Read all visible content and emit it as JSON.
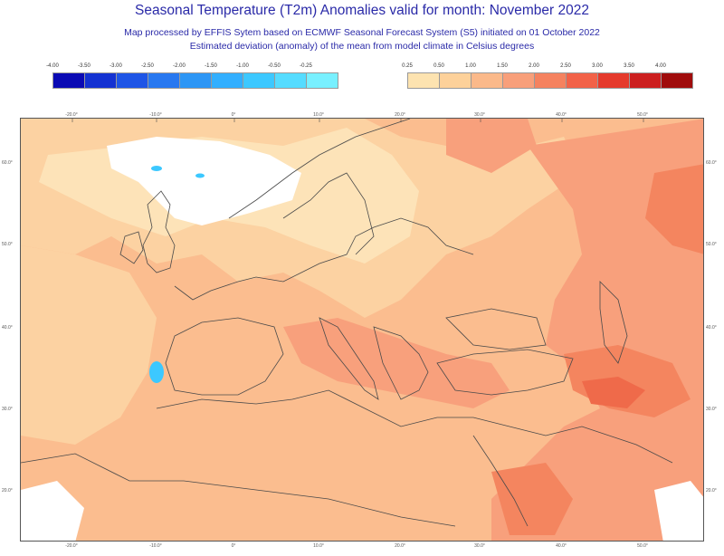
{
  "header": {
    "title": "Seasonal Temperature (T2m) Anomalies valid for month: November 2022",
    "subtitle1": "Map processed by EFFIS Sytem based on ECMWF Seasonal Forecast System (S5) initiated on 01 October 2022",
    "subtitle2": "Estimated deviation (anomaly) of the mean from model climate in Celsius degrees"
  },
  "legend": {
    "cold": {
      "ticks": [
        "-4.00",
        "-3.50",
        "-3.00",
        "-2.50",
        "-2.00",
        "-1.50",
        "-1.00",
        "-0.50",
        "-0.25"
      ],
      "colors": [
        "#0a0ab4",
        "#1432d2",
        "#1e55e6",
        "#2878f0",
        "#2d96f5",
        "#32afff",
        "#3cc8ff",
        "#55dcff",
        "#78f0ff"
      ]
    },
    "warm": {
      "ticks": [
        "0.25",
        "0.50",
        "1.00",
        "1.50",
        "2.00",
        "2.50",
        "3.00",
        "3.50",
        "4.00"
      ],
      "colors": [
        "#fde3b0",
        "#fdd19a",
        "#fbb98a",
        "#f89f7a",
        "#f5825f",
        "#f26248",
        "#e53a2c",
        "#cc1f1f",
        "#a00c0c"
      ]
    }
  },
  "map": {
    "lon_ticks": [
      "-20.0°",
      "-10.0°",
      "0°",
      "10.0°",
      "20.0°",
      "30.0°",
      "40.0°",
      "50.0°"
    ],
    "lat_ticks": [
      "60.0°",
      "50.0°",
      "40.0°",
      "30.0°",
      "20.0°"
    ],
    "colors": {
      "base": "#fbbd8f",
      "lighter": "#fcd2a2",
      "lightest": "#fde3b8",
      "warm": "#f8a07c",
      "hot": "#f4855f",
      "hottest": "#ef6a4a",
      "neutral": "#ffffff",
      "cold": "#3cc8ff",
      "border": "#4a4a4a"
    }
  }
}
